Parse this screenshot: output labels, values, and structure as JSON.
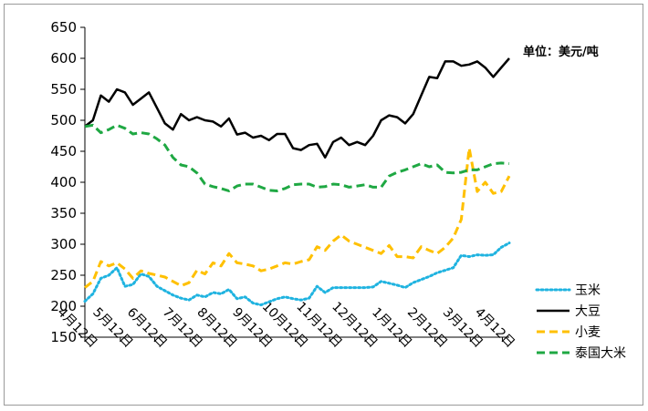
{
  "chart_data": {
    "type": "line",
    "title": "",
    "unit_label": "单位：美元/吨",
    "xlabel": "",
    "ylabel": "",
    "ylim": [
      150,
      650
    ],
    "yticks": [
      150,
      200,
      250,
      300,
      350,
      400,
      450,
      500,
      550,
      600,
      650
    ],
    "grid": false,
    "legend_position": "right",
    "x_tick_labels": [
      "4月12日",
      "5月12日",
      "6月12日",
      "7月12日",
      "8月12日",
      "9月12日",
      "10月12日",
      "11月12日",
      "12月12日",
      "1月12日",
      "2月12日",
      "3月12日",
      "4月12日"
    ],
    "x_tick_positions": [
      0,
      4.43,
      8.71,
      13.14,
      17.43,
      21.86,
      26.29,
      30.57,
      35.0,
      39.29,
      43.71,
      48.14,
      52.14
    ],
    "x": [
      0,
      1,
      2,
      3,
      4,
      5,
      6,
      7,
      8,
      9,
      10,
      11,
      12,
      13,
      14,
      15,
      16,
      17,
      18,
      19,
      20,
      21,
      22,
      23,
      24,
      25,
      26,
      27,
      28,
      29,
      30,
      31,
      32,
      33,
      34,
      35,
      36,
      37,
      38,
      39,
      40,
      41,
      42,
      43,
      44,
      45,
      46,
      47,
      48,
      49,
      50,
      51,
      52,
      53
    ],
    "series": [
      {
        "name": "玉米",
        "color": "#1fb3e0",
        "dash": "dotted",
        "values": [
          208,
          220,
          245,
          250,
          262,
          232,
          235,
          252,
          248,
          232,
          225,
          218,
          213,
          210,
          218,
          215,
          222,
          220,
          227,
          212,
          215,
          205,
          202,
          207,
          212,
          215,
          212,
          210,
          213,
          232,
          222,
          230,
          230,
          230,
          230,
          230,
          231,
          240,
          237,
          234,
          230,
          238,
          243,
          248,
          254,
          258,
          262,
          282,
          280,
          283,
          282,
          283,
          295,
          302
        ]
      },
      {
        "name": "大豆",
        "color": "#000000",
        "dash": "solid",
        "values": [
          490,
          500,
          540,
          530,
          550,
          545,
          525,
          535,
          545,
          520,
          495,
          485,
          510,
          500,
          505,
          500,
          498,
          490,
          503,
          477,
          480,
          472,
          475,
          468,
          478,
          478,
          455,
          452,
          460,
          462,
          440,
          465,
          472,
          460,
          465,
          460,
          475,
          500,
          508,
          505,
          495,
          510,
          540,
          570,
          568,
          595,
          595,
          588,
          590,
          595,
          585,
          570,
          585,
          600
        ]
      },
      {
        "name": "小麦",
        "color": "#ffc000",
        "dash": "dashed",
        "values": [
          230,
          240,
          272,
          265,
          270,
          260,
          245,
          257,
          253,
          250,
          247,
          240,
          233,
          238,
          258,
          252,
          270,
          265,
          285,
          270,
          268,
          265,
          257,
          260,
          265,
          270,
          268,
          272,
          275,
          296,
          290,
          305,
          315,
          305,
          300,
          295,
          290,
          285,
          298,
          280,
          280,
          278,
          296,
          290,
          285,
          295,
          310,
          340,
          455,
          385,
          400,
          382,
          385,
          410
        ]
      },
      {
        "name": "泰国大米",
        "color": "#1fa843",
        "dash": "dashed",
        "values": [
          490,
          492,
          480,
          485,
          492,
          487,
          478,
          480,
          478,
          470,
          460,
          440,
          428,
          425,
          415,
          397,
          393,
          390,
          386,
          394,
          397,
          397,
          392,
          387,
          386,
          390,
          396,
          397,
          397,
          392,
          393,
          397,
          396,
          392,
          394,
          396,
          392,
          392,
          410,
          416,
          420,
          425,
          430,
          425,
          428,
          416,
          415,
          416,
          420,
          420,
          425,
          430,
          431,
          430
        ]
      }
    ]
  }
}
